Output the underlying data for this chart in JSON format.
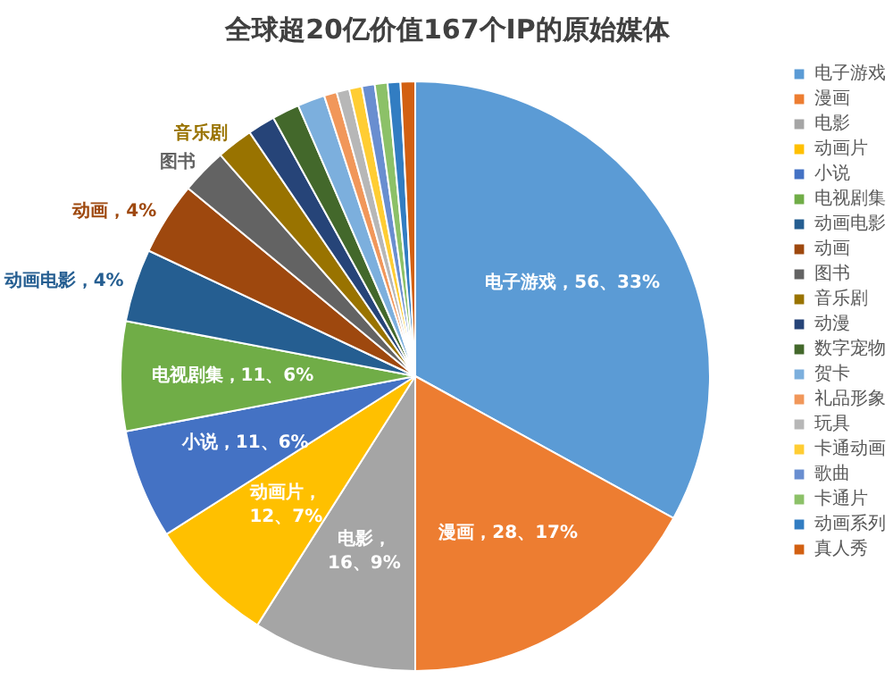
{
  "chart_data": {
    "type": "pie",
    "title": "全球超20亿价值167个IP的原始媒体",
    "categories": [
      "电子游戏",
      "漫画",
      "电影",
      "动画片",
      "小说",
      "电视剧集",
      "动画电影",
      "动画",
      "图书",
      "音乐剧",
      "动漫",
      "数字宠物",
      "贺卡",
      "礼品形象",
      "玩具",
      "卡通动画",
      "歌曲",
      "卡通片",
      "动画系列",
      "真人秀"
    ],
    "values": [
      33,
      17,
      9,
      7,
      6,
      6,
      4,
      4,
      2.5,
      2,
      1.5,
      1.5,
      1.5,
      0.7,
      0.7,
      0.7,
      0.7,
      0.7,
      0.7,
      0.8
    ],
    "value_labels": [
      "电子游戏，56、33%",
      "漫画，28、17%",
      "电影，\n16、9%",
      "动画片，\n12、7%",
      "小说，11、6%",
      "电视剧集，11、6%",
      "动画电影，4%",
      "动画，4%",
      "图书",
      "音乐剧",
      null,
      null,
      null,
      null,
      null,
      null,
      null,
      null,
      null,
      null
    ],
    "colors": [
      "#5b9bd5",
      "#ed7d31",
      "#a5a5a5",
      "#ffc000",
      "#4472c4",
      "#70ad47",
      "#255e91",
      "#9e480e",
      "#636363",
      "#997300",
      "#264478",
      "#43682b",
      "#7cafdd",
      "#f1975a",
      "#b7b7b7",
      "#ffcd33",
      "#698ed0",
      "#8cc168",
      "#327dc2",
      "#d26012"
    ],
    "legend": "right"
  }
}
